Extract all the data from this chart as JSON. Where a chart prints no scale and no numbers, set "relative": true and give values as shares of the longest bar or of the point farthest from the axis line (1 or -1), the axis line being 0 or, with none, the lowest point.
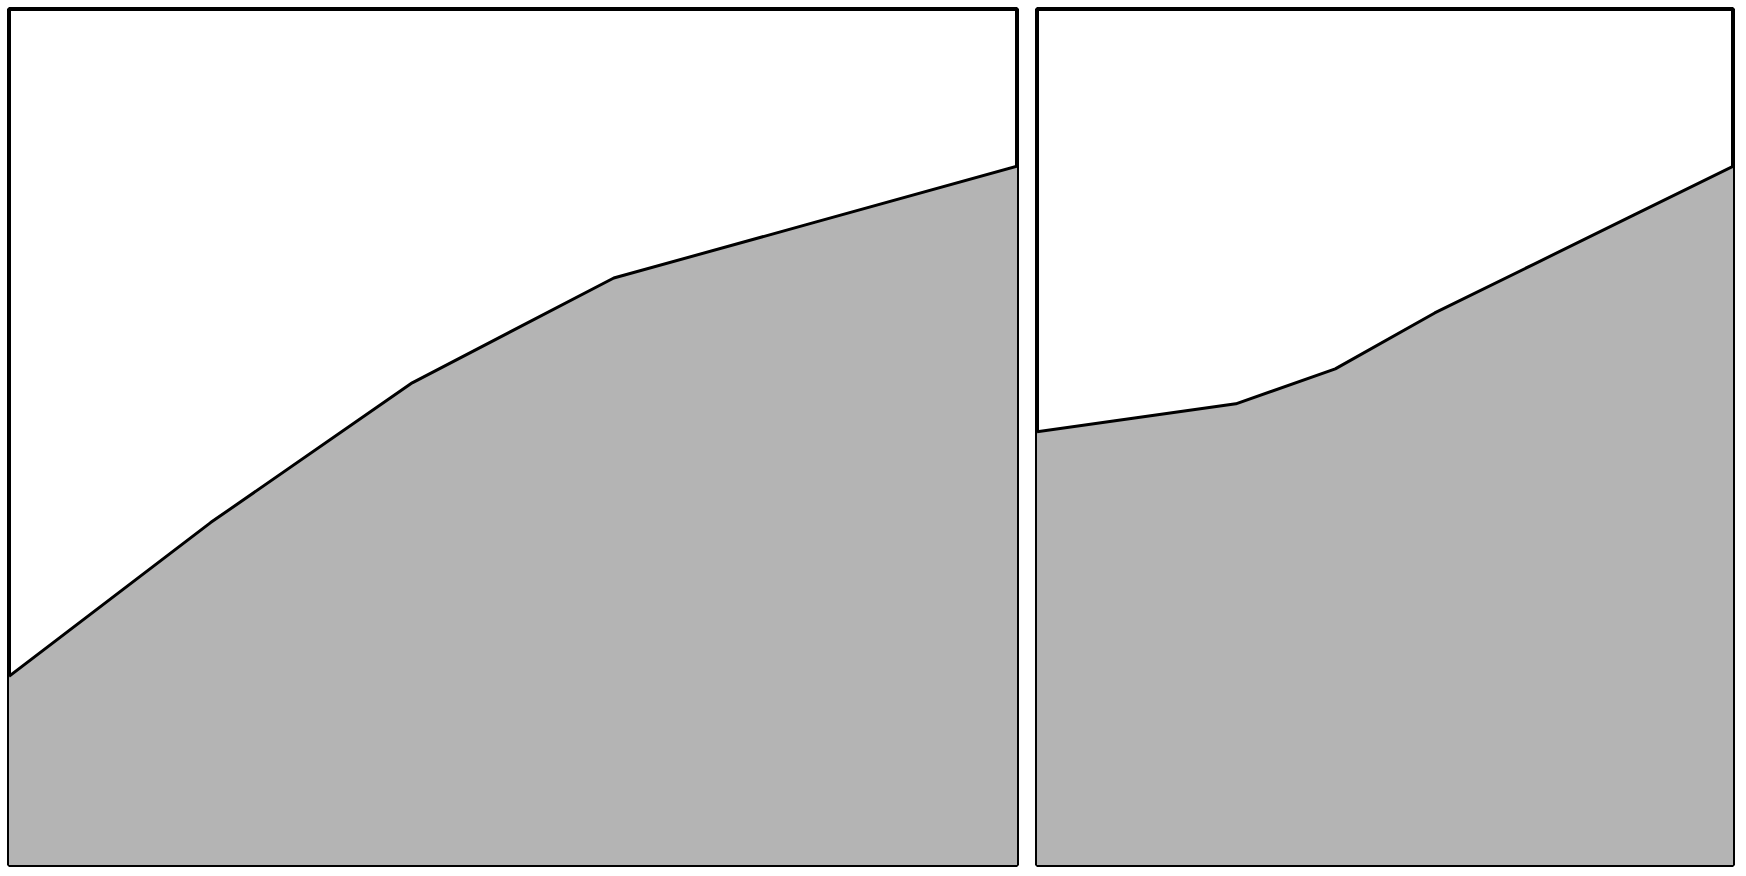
{
  "chart_data": [
    {
      "type": "area",
      "relative": true,
      "categories": [
        null,
        null,
        null,
        null,
        null,
        null
      ],
      "values": [
        0.27,
        0.49,
        0.69,
        0.84,
        0.92,
        1
      ],
      "color": "#b4b4b4",
      "grid": false
    },
    {
      "type": "area",
      "relative": true,
      "categories": [
        null,
        null,
        null,
        null,
        null,
        null,
        null,
        null
      ],
      "values": [
        0.62,
        0.64,
        0.66,
        0.71,
        0.79,
        0.86,
        0.93,
        1
      ],
      "color": "#b4b4b4",
      "grid": false
    }
  ]
}
